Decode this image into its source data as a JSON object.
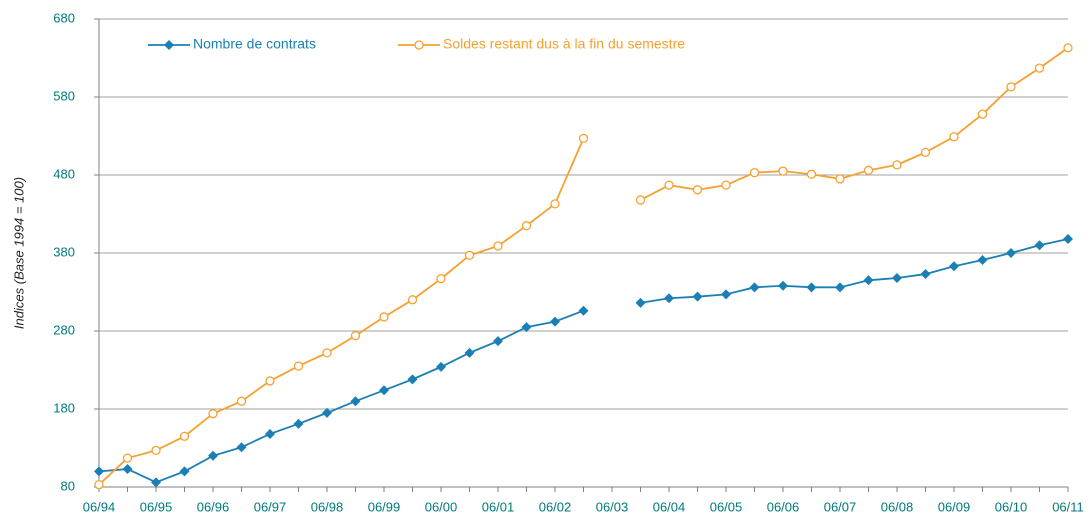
{
  "chart_data": {
    "type": "line",
    "y_label": "Indices (Base 1994 = 100)",
    "categories": [
      "06/94",
      null,
      "06/95",
      null,
      "06/96",
      null,
      "06/97",
      null,
      "06/98",
      null,
      "06/99",
      null,
      "06/00",
      null,
      "06/01",
      null,
      "06/02",
      null,
      "06/03",
      null,
      "06/04",
      null,
      "06/05",
      null,
      "06/06",
      null,
      "06/07",
      null,
      "06/08",
      null,
      "06/09",
      null,
      "06/10",
      null,
      "06/11"
    ],
    "series": [
      {
        "name": "Nombre de contrats",
        "color": "#1a7fb5",
        "marker": "diamond",
        "values": [
          100,
          103,
          86,
          100,
          120,
          131,
          148,
          161,
          175,
          190,
          204,
          218,
          234,
          252,
          267,
          285,
          292,
          306,
          null,
          316,
          322,
          324,
          327,
          336,
          338,
          336,
          336,
          345,
          348,
          353,
          363,
          371,
          380,
          390,
          398
        ]
      },
      {
        "name": "Soldes restant dus à la fin du semestre",
        "color": "#f7a030",
        "marker": "circle",
        "values": [
          83,
          117,
          127,
          145,
          174,
          190,
          216,
          235,
          252,
          274,
          298,
          320,
          347,
          377,
          389,
          415,
          443,
          527,
          null,
          448,
          467,
          461,
          467,
          483,
          485,
          481,
          475,
          486,
          493,
          509,
          529,
          558,
          593,
          617,
          643
        ]
      }
    ],
    "ylim": [
      80,
      680
    ],
    "yticks": [
      80,
      180,
      280,
      380,
      480,
      580,
      680
    ],
    "grid": true
  }
}
